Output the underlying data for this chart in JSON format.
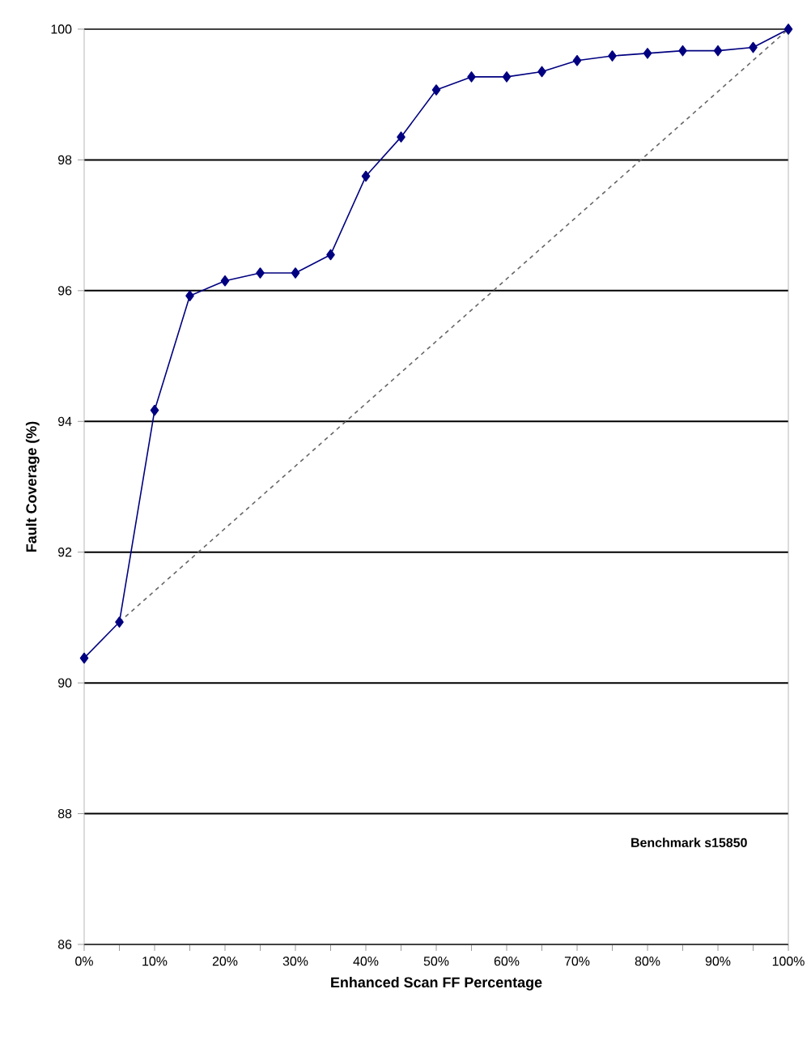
{
  "chart_data": {
    "type": "line",
    "xlabel": "Enhanced Scan FF Percentage",
    "ylabel": "Fault Coverage (%)",
    "x": [
      0,
      5,
      10,
      15,
      20,
      25,
      30,
      35,
      40,
      45,
      50,
      55,
      60,
      65,
      70,
      75,
      80,
      85,
      90,
      95,
      100
    ],
    "series": [
      {
        "color": "#000080",
        "marker": "diamond",
        "line_style": "solid",
        "values": [
          90.38,
          90.93,
          94.17,
          95.92,
          96.15,
          96.27,
          96.27,
          96.55,
          97.75,
          98.35,
          99.07,
          99.27,
          99.27,
          99.35,
          99.52,
          99.59,
          99.63,
          99.67,
          99.67,
          99.72,
          100
        ]
      },
      {
        "color": "#666666",
        "marker": "none",
        "line_style": "dashed",
        "x": [
          5,
          100
        ],
        "values": [
          90.93,
          100
        ]
      }
    ],
    "xlim": [
      0,
      100
    ],
    "ylim": [
      86,
      100
    ],
    "xticks": [
      {
        "value": 0,
        "label": "0%"
      },
      {
        "value": 5,
        "label": null
      },
      {
        "value": 10,
        "label": "10%"
      },
      {
        "value": 15,
        "label": null
      },
      {
        "value": 20,
        "label": "20%"
      },
      {
        "value": 25,
        "label": null
      },
      {
        "value": 30,
        "label": "30%"
      },
      {
        "value": 35,
        "label": null
      },
      {
        "value": 40,
        "label": "40%"
      },
      {
        "value": 45,
        "label": null
      },
      {
        "value": 50,
        "label": "50%"
      },
      {
        "value": 55,
        "label": null
      },
      {
        "value": 60,
        "label": "60%"
      },
      {
        "value": 65,
        "label": null
      },
      {
        "value": 70,
        "label": "70%"
      },
      {
        "value": 75,
        "label": null
      },
      {
        "value": 80,
        "label": "80%"
      },
      {
        "value": 85,
        "label": null
      },
      {
        "value": 90,
        "label": "90%"
      },
      {
        "value": 95,
        "label": null
      },
      {
        "value": 100,
        "label": "100%"
      }
    ],
    "yticks": [
      86,
      88,
      90,
      92,
      94,
      96,
      98,
      100
    ],
    "grid": "y",
    "annotations": [
      "Benchmark s15850"
    ]
  }
}
